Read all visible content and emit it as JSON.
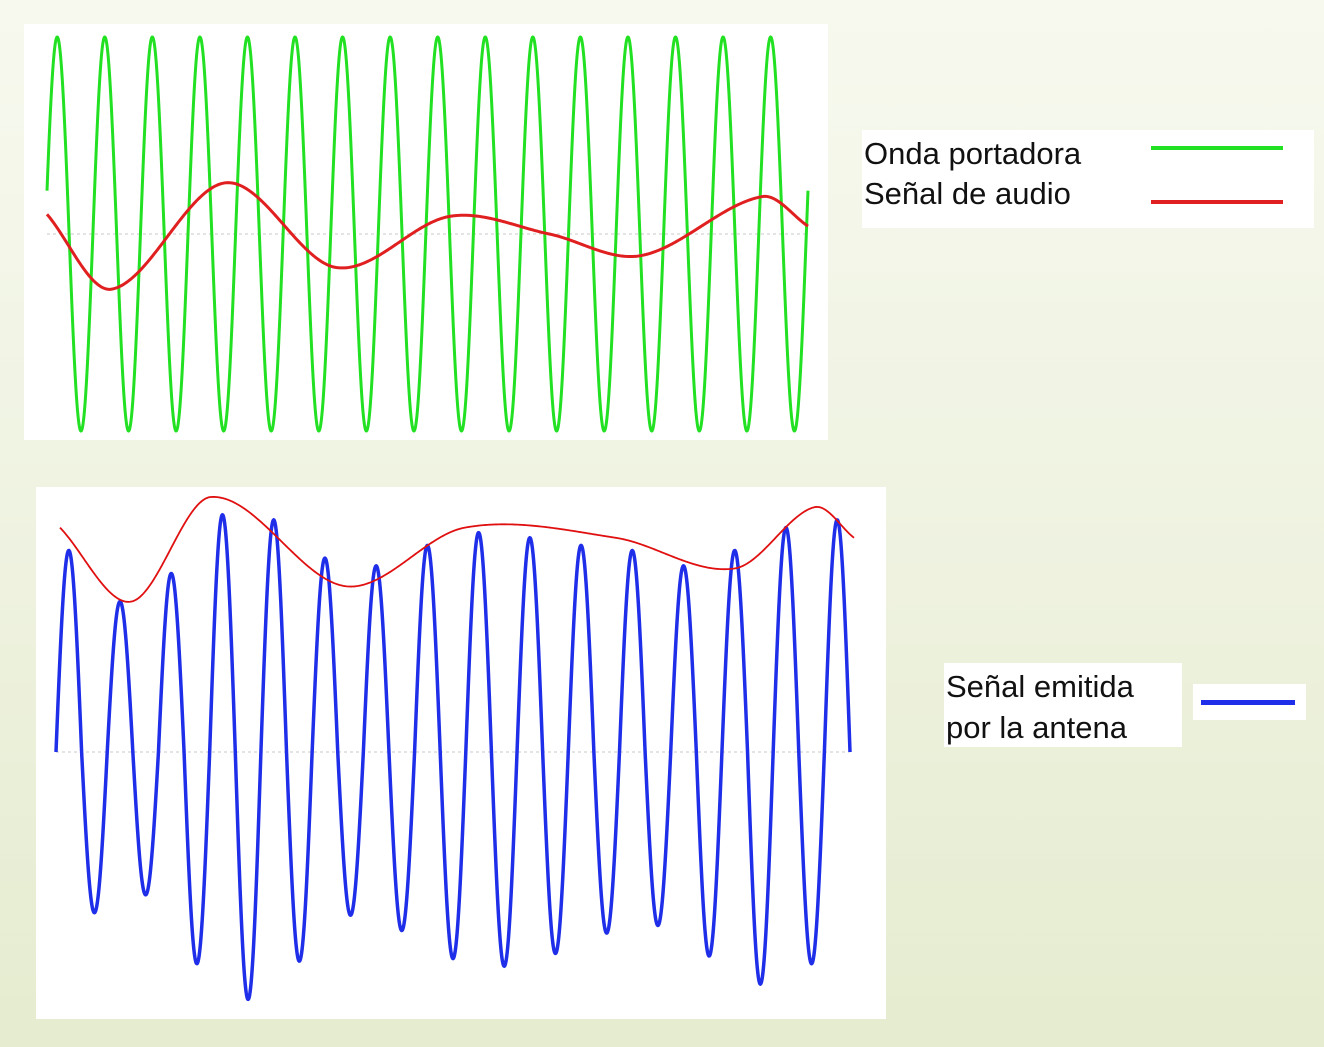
{
  "colors": {
    "carrier": "#22e022",
    "audio": "#e02020",
    "emitted": "#1f2ee8",
    "envelope": "#e01010",
    "baseline": "#c8c8c8"
  },
  "legend_top": {
    "carrier_label": "Onda portadora",
    "audio_label": "Señal de audio"
  },
  "legend_bottom": {
    "line1": "Señal emitida",
    "line2": "por la antena"
  },
  "chart_data": [
    {
      "type": "line",
      "series": [
        {
          "name": "Onda portadora",
          "kind": "carrier",
          "cycles": 16,
          "amplitude": 1.0
        },
        {
          "name": "Señal de audio",
          "kind": "audio",
          "x": [
            0,
            0.085,
            0.235,
            0.38,
            0.53,
            0.66,
            0.78,
            0.94,
            1.0
          ],
          "values": [
            0.1,
            -0.28,
            0.26,
            -0.17,
            0.09,
            0.0,
            -0.11,
            0.19,
            0.04
          ]
        }
      ],
      "ylim": [
        -1,
        1
      ]
    },
    {
      "type": "line",
      "series": [
        {
          "name": "Señal emitida por la antena",
          "kind": "am-signal",
          "cycles": 15.5,
          "peaks": [
            0.79,
            0.59,
            0.7,
            0.93,
            0.91,
            0.76,
            0.73,
            0.81,
            0.86,
            0.84,
            0.81,
            0.79,
            0.73,
            0.79,
            0.88,
            0.91
          ],
          "troughs": [
            -0.63,
            -0.56,
            -0.83,
            -0.97,
            -0.82,
            -0.64,
            -0.7,
            -0.81,
            -0.84,
            -0.79,
            -0.71,
            -0.68,
            -0.8,
            -0.91,
            -0.83
          ]
        },
        {
          "name": "Envolvente",
          "kind": "envelope",
          "x": [
            0,
            0.09,
            0.19,
            0.36,
            0.51,
            0.7,
            0.85,
            0.95,
            1.0
          ],
          "values": [
            0.88,
            0.59,
            1.0,
            0.65,
            0.88,
            0.84,
            0.72,
            0.96,
            0.84
          ]
        }
      ],
      "ylim": [
        -1,
        1
      ]
    }
  ]
}
